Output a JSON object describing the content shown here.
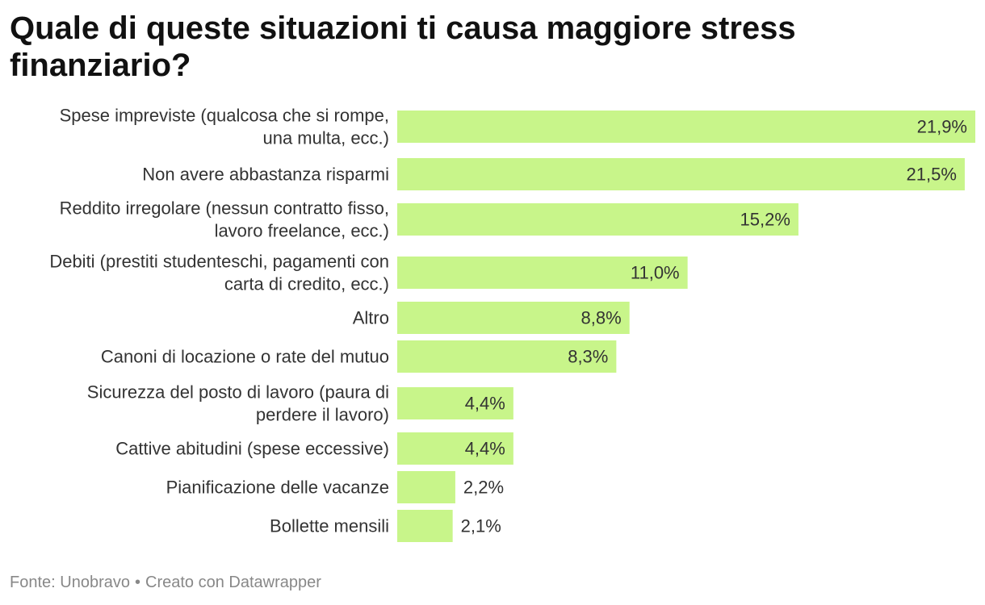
{
  "chart_data": {
    "type": "bar",
    "orientation": "horizontal",
    "title": "Quale di queste situazioni ti causa maggiore stress finanziario?",
    "categories": [
      "Spese impreviste (qualcosa che si rompe, una multa, ecc.)",
      "Non avere abbastanza risparmi",
      "Reddito irregolare (nessun contratto fisso, lavoro freelance, ecc.)",
      "Debiti (prestiti studenteschi, pagamenti con carta di credito, ecc.)",
      "Altro",
      "Canoni di locazione o rate del mutuo",
      "Sicurezza del posto di lavoro (paura di perdere il lavoro)",
      "Cattive abitudini (spese eccessive)",
      "Pianificazione delle vacanze",
      "Bollette mensili"
    ],
    "category_lines": [
      [
        "Spese impreviste (qualcosa che si rompe,",
        "una multa, ecc.)"
      ],
      [
        "Non avere abbastanza risparmi"
      ],
      [
        "Reddito irregolare (nessun contratto fisso,",
        "lavoro freelance, ecc.)"
      ],
      [
        "Debiti (prestiti studenteschi, pagamenti con",
        "carta di credito, ecc.)"
      ],
      [
        "Altro"
      ],
      [
        "Canoni di locazione o rate del mutuo"
      ],
      [
        "Sicurezza del posto di lavoro (paura di",
        "perdere il lavoro)"
      ],
      [
        "Cattive abitudini (spese eccessive)"
      ],
      [
        "Pianificazione delle vacanze"
      ],
      [
        "Bollette mensili"
      ]
    ],
    "values": [
      21.9,
      21.5,
      15.2,
      11.0,
      8.8,
      8.3,
      4.4,
      4.4,
      2.2,
      2.1
    ],
    "value_labels": [
      "21,9%",
      "21,5%",
      "15,2%",
      "11,0%",
      "8,8%",
      "8,3%",
      "4,4%",
      "4,4%",
      "2,2%",
      "2,1%"
    ],
    "xlim": [
      0,
      21.9
    ],
    "bar_color": "#c8f58a",
    "grid": false
  },
  "footer": {
    "source": "Fonte: Unobravo",
    "separator": "•",
    "credit": "Creato con Datawrapper"
  }
}
